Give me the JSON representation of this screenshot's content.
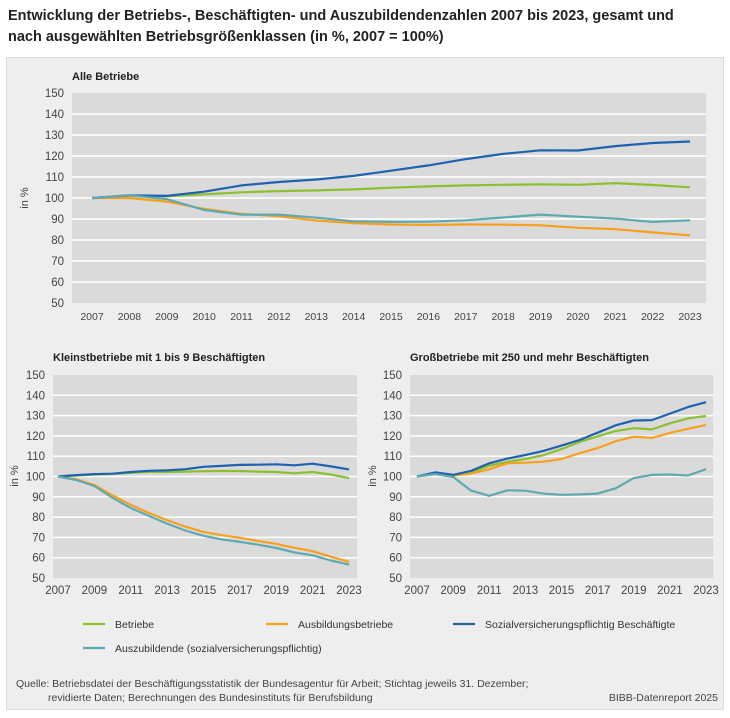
{
  "title": "Entwicklung der Betriebs-, Beschäftigten- und Auszubildendenzahlen 2007 bis 2023, gesamt und nach ausgewählten Betriebsgrößenklassen (in %, 2007 = 100%)",
  "colors": {
    "Betriebe": "#8dc02e",
    "Ausbildungsbetriebe": "#f7a01e",
    "Sozialversicherungspflichtig Beschäftigte": "#1f63b0",
    "Auszubildende (sozialversicherungspflichtig)": "#5fa9b0"
  },
  "legend": [
    "Betriebe",
    "Ausbildungsbetriebe",
    "Sozialversicherungspflichtig Beschäftigte",
    "Auszubildende (sozialversicherungspflichtig)"
  ],
  "source_line1": "Quelle: Betriebsdatei der Beschäftigungsstatistik der Bundesagentur für Arbeit; Stichtag jeweils 31. Dezember;",
  "source_line2": "revidierte Daten; Berechnungen des Bundesinstituts für Berufsbildung",
  "credit": "BIBB-Datenreport 2025",
  "chart_data": [
    {
      "type": "line",
      "title": "Alle Betriebe",
      "ylabel": "in %",
      "ylim": [
        50,
        150
      ],
      "yticks": [
        50,
        60,
        70,
        80,
        90,
        100,
        110,
        120,
        130,
        140,
        150
      ],
      "grid": true,
      "x": [
        2007,
        2008,
        2009,
        2010,
        2011,
        2012,
        2013,
        2014,
        2015,
        2016,
        2017,
        2018,
        2019,
        2020,
        2021,
        2022,
        2023
      ],
      "xticklabels": [
        "2007",
        "2008",
        "2009",
        "2010",
        "2011",
        "2012",
        "2013",
        "2014",
        "2015",
        "2016",
        "2017",
        "2018",
        "2019",
        "2020",
        "2021",
        "2022",
        "2023"
      ],
      "series": [
        {
          "name": "Betriebe",
          "values": [
            100,
            101,
            100.8,
            101.7,
            102.7,
            103.3,
            103.6,
            104.1,
            104.9,
            105.5,
            106,
            106.3,
            106.5,
            106.3,
            107.1,
            106.2,
            105.1
          ]
        },
        {
          "name": "Ausbildungsbetriebe",
          "values": [
            100,
            100,
            98.3,
            94.8,
            92.5,
            91.3,
            89.3,
            88,
            87.4,
            87.2,
            87.4,
            87.3,
            87,
            85.8,
            85.2,
            83.6,
            82.2
          ]
        },
        {
          "name": "Sozialversicherungspflichtig Beschäftigte",
          "values": [
            100,
            101.3,
            101,
            103,
            106,
            107.6,
            108.8,
            110.5,
            113,
            115.5,
            118.5,
            121,
            122.7,
            122.6,
            124.7,
            126.2,
            126.9
          ]
        },
        {
          "name": "Auszubildende (sozialversicherungspflichtig)",
          "values": [
            100,
            101.3,
            99.5,
            94.3,
            92.1,
            92.1,
            90.6,
            88.9,
            88.6,
            88.7,
            89.4,
            90.7,
            92.1,
            91.1,
            90.2,
            88.6,
            89.4
          ]
        }
      ]
    },
    {
      "type": "line",
      "title": "Kleinstbetriebe mit 1 bis 9 Beschäftigten",
      "ylabel": "in %",
      "ylim": [
        50,
        150
      ],
      "yticks": [
        50,
        60,
        70,
        80,
        90,
        100,
        110,
        120,
        130,
        140,
        150
      ],
      "grid": true,
      "x": [
        2007,
        2008,
        2009,
        2010,
        2011,
        2012,
        2013,
        2014,
        2015,
        2016,
        2017,
        2018,
        2019,
        2020,
        2021,
        2022,
        2023
      ],
      "xticklabels": [
        "2007",
        "2009",
        "2011",
        "2013",
        "2015",
        "2017",
        "2019",
        "2021",
        "2023"
      ],
      "series": [
        {
          "name": "Betriebe",
          "values": [
            100,
            100.5,
            101,
            101.3,
            101.8,
            102.2,
            102.2,
            102.4,
            102.6,
            102.7,
            102.7,
            102.4,
            102.2,
            101.6,
            102.2,
            101,
            99.2
          ]
        },
        {
          "name": "Ausbildungsbetriebe",
          "values": [
            100,
            98.6,
            95.8,
            90.7,
            86,
            82,
            78.5,
            75.3,
            72.7,
            71.1,
            69.8,
            68.3,
            66.8,
            64.9,
            63.2,
            60.5,
            58
          ]
        },
        {
          "name": "Sozialversicherungspflichtig Beschäftigte",
          "values": [
            100,
            100.7,
            101.2,
            101.4,
            102.2,
            102.8,
            103,
            103.6,
            104.8,
            105.2,
            105.7,
            105.8,
            106,
            105.5,
            106.3,
            105,
            103.5
          ]
        },
        {
          "name": "Auszubildende (sozialversicherungspflichtig)",
          "values": [
            100,
            98.3,
            95.3,
            89.5,
            84.5,
            80.6,
            76.8,
            73.4,
            70.8,
            69,
            67.8,
            66.4,
            64.8,
            62.6,
            61.2,
            58.6,
            56.6
          ]
        }
      ]
    },
    {
      "type": "line",
      "title": "Großbetriebe mit 250 und mehr Beschäftigten",
      "ylabel": "in %",
      "ylim": [
        50,
        150
      ],
      "yticks": [
        50,
        60,
        70,
        80,
        90,
        100,
        110,
        120,
        130,
        140,
        150
      ],
      "grid": true,
      "x": [
        2007,
        2008,
        2009,
        2010,
        2011,
        2012,
        2013,
        2014,
        2015,
        2016,
        2017,
        2018,
        2019,
        2020,
        2021,
        2022,
        2023
      ],
      "xticklabels": [
        "2007",
        "2009",
        "2011",
        "2013",
        "2015",
        "2017",
        "2019",
        "2021",
        "2023"
      ],
      "series": [
        {
          "name": "Betriebe",
          "values": [
            100,
            101.5,
            100.5,
            102,
            105.3,
            107.2,
            108.6,
            110.5,
            113.5,
            117,
            119.8,
            122.4,
            123.8,
            123.2,
            126.2,
            128.6,
            129.8
          ]
        },
        {
          "name": "Ausbildungsbetriebe",
          "values": [
            100,
            101.5,
            100.5,
            101.5,
            103.6,
            106.5,
            106.8,
            107.3,
            108.6,
            111.5,
            114,
            117.4,
            119.6,
            119,
            121.5,
            123.5,
            125.4
          ]
        },
        {
          "name": "Sozialversicherungspflichtig Beschäftigte",
          "values": [
            100,
            102,
            100.8,
            102.8,
            106.5,
            108.8,
            110.6,
            112.6,
            115.2,
            118,
            121.6,
            125.2,
            127.6,
            127.8,
            131,
            134.2,
            136.6
          ]
        },
        {
          "name": "Auszubildende (sozialversicherungspflichtig)",
          "values": [
            100,
            101.2,
            99.8,
            93,
            90.5,
            93.2,
            93,
            91.6,
            91,
            91.2,
            91.6,
            94.2,
            99.2,
            100.8,
            101,
            100.5,
            103.6
          ]
        }
      ]
    }
  ]
}
